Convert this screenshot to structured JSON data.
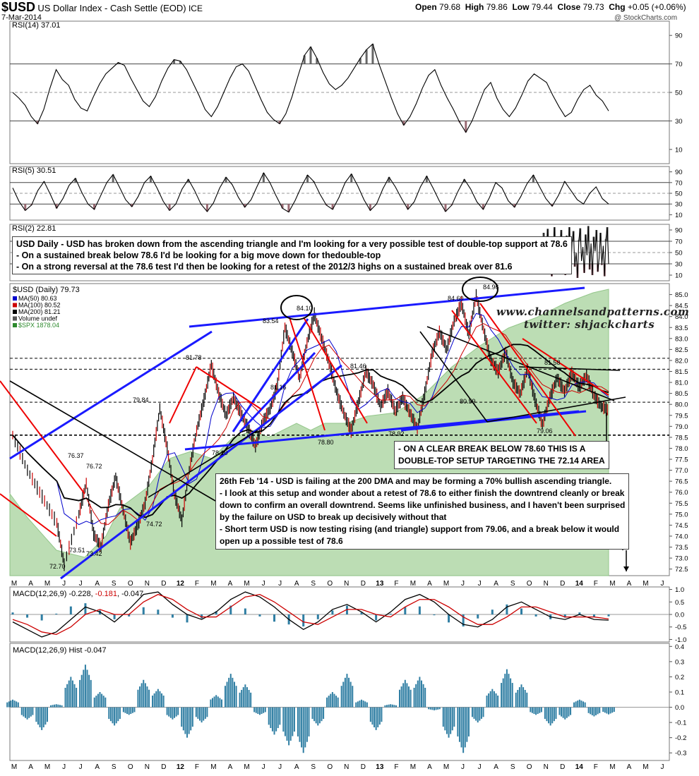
{
  "header": {
    "symbol": "$USD",
    "name": "US Dollar Index - Cash Settle (EOD)",
    "exchange": "ICE",
    "date": "7-Mar-2014",
    "ohlc": {
      "open_label": "Open",
      "open": "79.68",
      "high_label": "High",
      "high": "79.86",
      "low_label": "Low",
      "low": "79.44",
      "close_label": "Close",
      "close": "79.73",
      "chg_label": "Chg",
      "chg": "+0.05 (+0.06%)"
    },
    "copyright": "@ StockCharts.com"
  },
  "watermark": {
    "site": "www.channelsandpatterns.com",
    "twitter": "twitter: shjackcharts"
  },
  "notes": {
    "top": [
      "USD Daily - USD has broken down from the ascending triangle and I'm looking for a very possible test of double-top support at 78.6",
      "- On a sustained break below 78.6 I'd be looking for a big move down for thedouble-top",
      "- On a strong reversal at the 78.6 test I'd then be looking for a retest of the 2012/3 highs on a sustained break over 81.6"
    ],
    "break": [
      "- ON A CLEAR BREAK BELOW 78.60 THIS IS A",
      "DOUBLE-TOP SETUP TARGETING THE 72.14 AREA"
    ],
    "feb": [
      "26th Feb '14 - USD is failing at the 200 DMA and may be forming a 70% bullish ascending triangle.",
      "- I look at this setup and wonder about a retest of 78.6 to either finish the downtrend cleanly or break",
      "down to confirm an overall downtrend. Seems like unfinished business, and I haven't been surprised",
      "by the failure on USD to break up decisively without that",
      "- Short term USD is now testing rising (and triangle) support from 79.06, and a break below it would",
      "open up a possible test of 78.6"
    ]
  },
  "colors": {
    "price_up": "#000000",
    "price_down": "#cc0000",
    "ma50": "#0000cc",
    "ma100": "#cc0000",
    "ma200": "#000000",
    "spx_fill": "#b9dcb0",
    "spx_line": "#8fc485",
    "trend_blue": "#1a1aff",
    "trend_red": "#ee0000",
    "macd_hist": "#2f7ea3",
    "macd_signal": "#cc0000"
  },
  "chart_data": [
    {
      "panel": "rsi14",
      "type": "line",
      "legend": "RSI(14) 37.01",
      "ylim": [
        0,
        100
      ],
      "yticks": [
        10,
        30,
        50,
        70,
        90
      ],
      "levels": [
        30,
        50,
        70
      ],
      "values": [
        50,
        46,
        41,
        33,
        28,
        38,
        53,
        66,
        59,
        55,
        45,
        39,
        37,
        47,
        56,
        63,
        67,
        71,
        69,
        60,
        52,
        44,
        40,
        47,
        58,
        67,
        73,
        72,
        66,
        57,
        48,
        38,
        33,
        40,
        50,
        60,
        68,
        70,
        65,
        55,
        45,
        36,
        31,
        28,
        35,
        47,
        62,
        76,
        82,
        74,
        64,
        56,
        52,
        55,
        60,
        67,
        74,
        80,
        84,
        70,
        58,
        46,
        35,
        27,
        33,
        42,
        53,
        62,
        66,
        55,
        46,
        38,
        29,
        22,
        30,
        41,
        52,
        57,
        46,
        38,
        33,
        39,
        48,
        58,
        63,
        60,
        57,
        48,
        40,
        33,
        36,
        45,
        52,
        55,
        48,
        44,
        37
      ]
    },
    {
      "panel": "rsi5",
      "type": "line",
      "legend": "RSI(5) 30.51",
      "ylim": [
        0,
        100
      ],
      "yticks": [
        10,
        30,
        50,
        70,
        90
      ],
      "levels": [
        30,
        50,
        70
      ],
      "values": [
        60,
        35,
        18,
        28,
        55,
        72,
        48,
        22,
        40,
        65,
        78,
        52,
        30,
        20,
        45,
        70,
        85,
        62,
        38,
        25,
        44,
        70,
        82,
        60,
        35,
        18,
        30,
        58,
        76,
        55,
        30,
        16,
        32,
        60,
        80,
        66,
        42,
        24,
        38,
        64,
        88,
        70,
        45,
        22,
        15,
        36,
        62,
        84,
        72,
        48,
        28,
        20,
        42,
        70,
        86,
        64,
        38,
        18,
        30,
        58,
        80,
        62,
        40,
        20,
        34,
        62,
        82,
        60,
        36,
        16,
        28,
        54,
        76,
        58,
        34,
        20,
        42,
        70,
        60,
        36,
        24,
        44,
        68,
        84,
        62,
        40,
        26,
        46,
        72,
        55,
        38,
        30,
        50,
        62,
        40,
        30
      ]
    },
    {
      "panel": "rsi2",
      "type": "line",
      "legend": "RSI(2) 22.81",
      "ylim": [
        0,
        100
      ],
      "yticks": [
        10,
        30,
        50,
        70,
        90
      ],
      "levels": [
        30,
        50,
        70
      ],
      "values": [
        85,
        15,
        60,
        92,
        20,
        70,
        8,
        55,
        95,
        30,
        75,
        12,
        65,
        90,
        22,
        58,
        10,
        80,
        40,
        95,
        18,
        68,
        88,
        25,
        50,
        5,
        72,
        93,
        35,
        60,
        14,
        82,
        45,
        97,
        20,
        66,
        10,
        78,
        52,
        90,
        16,
        40,
        85,
        28,
        62,
        8,
        74,
        95,
        30
      ]
    },
    {
      "panel": "price",
      "type": "line",
      "title": "$USD (Daily) 79.73",
      "legend": [
        {
          "name": "MA(50) 80.63",
          "color": "#0000cc"
        },
        {
          "name": "MA(100) 80.52",
          "color": "#cc0000"
        },
        {
          "name": "MA(200) 81.21",
          "color": "#000000"
        },
        {
          "name": "Volume undef",
          "color": "#555555"
        },
        {
          "name": "$SPX 1878.04",
          "color": "#2d8a2d"
        }
      ],
      "ylim": [
        72.2,
        85.5
      ],
      "yticks": [
        "72.5",
        "73.0",
        "73.5",
        "74.0",
        "74.5",
        "75.0",
        "75.5",
        "76.0",
        "76.5",
        "77.0",
        "77.5",
        "78.0",
        "78.5",
        "79.0",
        "79.5",
        "80.0",
        "80.5",
        "81.0",
        "81.5",
        "82.0",
        "82.5",
        "83.0",
        "83.5",
        "84.0",
        "84.5",
        "85.0"
      ],
      "xticks": [
        "M",
        "A",
        "M",
        "J",
        "J",
        "A",
        "S",
        "O",
        "N",
        "D",
        "12",
        "F",
        "M",
        "A",
        "M",
        "J",
        "J",
        "A",
        "S",
        "O",
        "N",
        "D",
        "13",
        "F",
        "M",
        "A",
        "M",
        "J",
        "J",
        "A",
        "S",
        "O",
        "N",
        "D",
        "14",
        "F",
        "M",
        "A",
        "M",
        "J"
      ],
      "price_points": [
        [
          0,
          78.6
        ],
        [
          2,
          77.0
        ],
        [
          4,
          75.8
        ],
        [
          6,
          74.6
        ],
        [
          7,
          72.7
        ],
        [
          9,
          75.0
        ],
        [
          10,
          76.4
        ],
        [
          11,
          74.1
        ],
        [
          12,
          73.5
        ],
        [
          13,
          75.4
        ],
        [
          14,
          76.7
        ],
        [
          15,
          75.2
        ],
        [
          16,
          73.7
        ],
        [
          17,
          74.5
        ],
        [
          18,
          75.5
        ],
        [
          19,
          77.5
        ],
        [
          20,
          79.8
        ],
        [
          21,
          78.0
        ],
        [
          22,
          75.9
        ],
        [
          23,
          74.7
        ],
        [
          24,
          77.0
        ],
        [
          25,
          78.8
        ],
        [
          26,
          80.2
        ],
        [
          27,
          81.8
        ],
        [
          28,
          80.5
        ],
        [
          29,
          79.5
        ],
        [
          30,
          80.3
        ],
        [
          31,
          79.6
        ],
        [
          32,
          78.9
        ],
        [
          33,
          78.1
        ],
        [
          34,
          79.2
        ],
        [
          35,
          79.8
        ],
        [
          36,
          80.9
        ],
        [
          37,
          83.5
        ],
        [
          38,
          82.4
        ],
        [
          39,
          81.2
        ],
        [
          40,
          82.8
        ],
        [
          41,
          84.1
        ],
        [
          42,
          83.0
        ],
        [
          43,
          81.9
        ],
        [
          44,
          80.6
        ],
        [
          45,
          79.6
        ],
        [
          46,
          78.8
        ],
        [
          47,
          80.1
        ],
        [
          48,
          81.5
        ],
        [
          49,
          80.9
        ],
        [
          50,
          79.9
        ],
        [
          51,
          80.6
        ],
        [
          52,
          79.7
        ],
        [
          53,
          80.3
        ],
        [
          54,
          79.6
        ],
        [
          55,
          78.9
        ],
        [
          56,
          80.5
        ],
        [
          57,
          82.3
        ],
        [
          58,
          83.3
        ],
        [
          59,
          82.5
        ],
        [
          60,
          83.8
        ],
        [
          61,
          84.6
        ],
        [
          62,
          83.2
        ],
        [
          63,
          84.96
        ],
        [
          64,
          83.4
        ],
        [
          65,
          82.0
        ],
        [
          66,
          81.5
        ],
        [
          67,
          82.4
        ],
        [
          68,
          81.0
        ],
        [
          69,
          80.5
        ],
        [
          70,
          81.6
        ],
        [
          71,
          80.2
        ],
        [
          72,
          79.1
        ],
        [
          73,
          80.3
        ],
        [
          74,
          81.2
        ],
        [
          75,
          80.6
        ],
        [
          76,
          81.4
        ],
        [
          77,
          80.8
        ],
        [
          78,
          81.3
        ],
        [
          79,
          80.4
        ],
        [
          80,
          79.9
        ],
        [
          81,
          79.73
        ]
      ],
      "labels": [
        "72.70",
        "73.51",
        "73.42",
        "76.37",
        "76.72",
        "74.72",
        "79.84",
        "81.78",
        "78.10",
        "83.54",
        "84.10",
        "81.16",
        "78.80",
        "81.46",
        "78.92",
        "84.60",
        "84.96",
        "80.59",
        "81.58",
        "79.06"
      ],
      "levels": [
        78.6,
        80.1,
        81.6,
        82.1
      ]
    },
    {
      "panel": "macd",
      "type": "line",
      "legend": [
        "MACD(12,26,9) -0.228, ",
        "-0.181",
        ", -0.047"
      ],
      "ylim": [
        -1.1,
        1.1
      ],
      "yticks": [
        "1.0",
        "0.5",
        "0.0",
        "-0.5",
        "-1.0"
      ],
      "series": [
        {
          "name": "MACD",
          "values": [
            -0.3,
            -0.6,
            -0.9,
            -0.7,
            -0.2,
            0.3,
            0.1,
            -0.3,
            0.2,
            0.8,
            0.9,
            0.4,
            0.0,
            -0.2,
            0.1,
            0.6,
            0.9,
            0.7,
            0.3,
            -0.2,
            -0.6,
            -0.3,
            0.2,
            0.4,
            0.1,
            -0.3,
            0.1,
            0.6,
            0.8,
            0.5,
            0.0,
            -0.4,
            -0.5,
            -0.2,
            0.3,
            0.5,
            0.2,
            -0.1,
            -0.2,
            0.0,
            -0.2,
            -0.23
          ]
        },
        {
          "name": "Signal",
          "values": [
            -0.2,
            -0.4,
            -0.7,
            -0.8,
            -0.5,
            0.0,
            0.2,
            0.0,
            0.0,
            0.5,
            0.8,
            0.6,
            0.2,
            -0.1,
            -0.1,
            0.3,
            0.7,
            0.8,
            0.5,
            0.1,
            -0.3,
            -0.4,
            -0.1,
            0.2,
            0.2,
            0.0,
            -0.1,
            0.3,
            0.6,
            0.6,
            0.3,
            -0.1,
            -0.4,
            -0.4,
            -0.1,
            0.3,
            0.3,
            0.1,
            -0.1,
            -0.1,
            -0.1,
            -0.18
          ]
        }
      ]
    },
    {
      "panel": "hist",
      "type": "bar",
      "legend": "MACD(12,26,9) Hist -0.047",
      "ylim": [
        -0.35,
        0.42
      ],
      "yticks": [
        "0.4",
        "0.3",
        "0.2",
        "0.1",
        "0.0",
        "-0.1",
        "-0.2",
        "-0.3"
      ],
      "values": [
        0.05,
        -0.08,
        -0.15,
        0.02,
        0.2,
        0.28,
        0.1,
        -0.12,
        -0.05,
        0.18,
        0.12,
        -0.08,
        -0.2,
        -0.1,
        0.08,
        0.22,
        0.15,
        -0.05,
        -0.18,
        -0.25,
        -0.3,
        -0.12,
        0.1,
        0.22,
        0.05,
        -0.15,
        0.02,
        0.18,
        0.2,
        -0.02,
        -0.2,
        -0.3,
        -0.1,
        0.12,
        0.25,
        0.15,
        -0.05,
        -0.12,
        -0.08,
        0.05,
        -0.06,
        -0.047
      ]
    }
  ]
}
